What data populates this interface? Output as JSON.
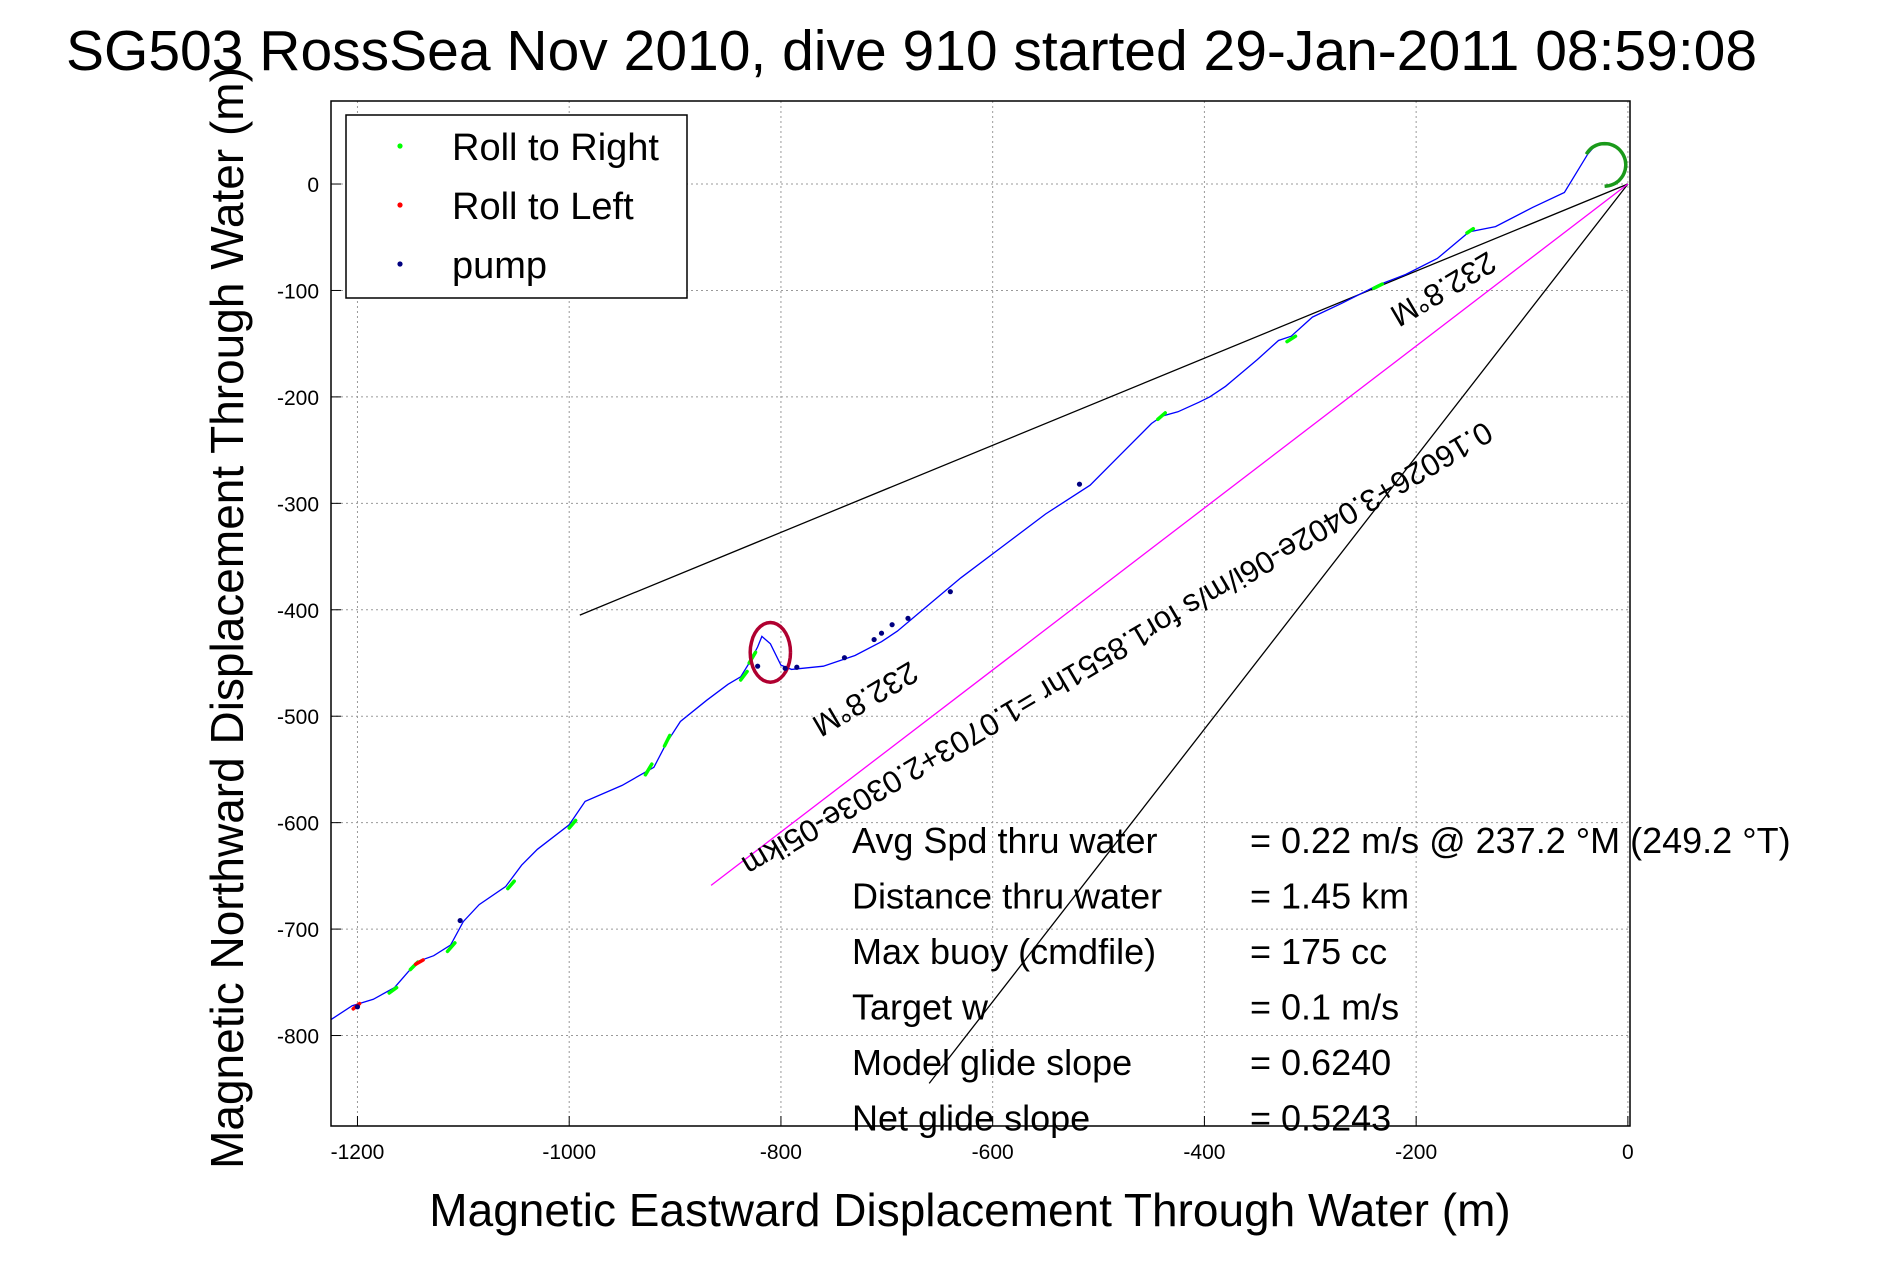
{
  "chart_data": {
    "type": "line",
    "title": "SG503 RossSea Nov 2010, dive 910 started 29-Jan-2011 08:59:08",
    "xlabel": "Magnetic Eastward Displacement Through Water (m)",
    "ylabel": "Magnetic Northward Displacement Through Water (m)",
    "xlim": [
      -1225,
      2
    ],
    "ylim": [
      -885,
      78
    ],
    "xticks": [
      -1200,
      -1000,
      -800,
      -600,
      -400,
      -200,
      0
    ],
    "yticks": [
      0,
      -100,
      -200,
      -300,
      -400,
      -500,
      -600,
      -700,
      -800
    ],
    "grid": true,
    "legend_position": "top-left",
    "legend": [
      {
        "label": "Roll to Right",
        "color": "#00ff00"
      },
      {
        "label": "Roll to Left",
        "color": "#ff0000"
      },
      {
        "label": "pump",
        "color": "#000080"
      }
    ],
    "track": {
      "color": "#0000ff",
      "x": [
        -1225,
        -1205,
        -1185,
        -1165,
        -1152,
        -1142,
        -1128,
        -1112,
        -1100,
        -1085,
        -1060,
        -1045,
        -1030,
        -1000,
        -985,
        -950,
        -920,
        -908,
        -895,
        -870,
        -850,
        -838,
        -830,
        -822,
        -818,
        -810,
        -800,
        -790,
        -760,
        -730,
        -705,
        -690,
        -672,
        -630,
        -590,
        -550,
        -508,
        -480,
        -450,
        -440,
        -425,
        -405,
        -395,
        -380,
        -350,
        -330,
        -318,
        -298,
        -270,
        -236,
        -210,
        -180,
        -150,
        -125,
        -90,
        -60,
        -38,
        -32
      ],
      "y": [
        -785,
        -772,
        -766,
        -755,
        -740,
        -730,
        -725,
        -715,
        -693,
        -677,
        -660,
        -640,
        -625,
        -602,
        -580,
        -565,
        -548,
        -525,
        -505,
        -485,
        -470,
        -463,
        -450,
        -435,
        -425,
        -432,
        -452,
        -456,
        -453,
        -443,
        -430,
        -420,
        -405,
        -370,
        -340,
        -310,
        -283,
        -255,
        -225,
        -218,
        -214,
        -205,
        -200,
        -190,
        -165,
        -147,
        -143,
        -125,
        -112,
        -95,
        -85,
        -70,
        -45,
        -40,
        -22,
        -8,
        28,
        35
      ]
    },
    "roll_right_arc": {
      "cx": -22,
      "cy": 18,
      "r": 20,
      "start_deg": 150,
      "end_deg": -90
    },
    "roll_right_segments": [
      {
        "x": [
          -1170,
          -1163
        ],
        "y": [
          -760,
          -755
        ]
      },
      {
        "x": [
          -1150,
          -1143
        ],
        "y": [
          -738,
          -731
        ]
      },
      {
        "x": [
          -1115,
          -1108
        ],
        "y": [
          -721,
          -713
        ]
      },
      {
        "x": [
          -1058,
          -1052
        ],
        "y": [
          -662,
          -655
        ]
      },
      {
        "x": [
          -1000,
          -994
        ],
        "y": [
          -605,
          -598
        ]
      },
      {
        "x": [
          -928,
          -922
        ],
        "y": [
          -555,
          -545
        ]
      },
      {
        "x": [
          -910,
          -905
        ],
        "y": [
          -528,
          -518
        ]
      },
      {
        "x": [
          -838,
          -832
        ],
        "y": [
          -466,
          -458
        ]
      },
      {
        "x": [
          -830,
          -824
        ],
        "y": [
          -450,
          -440
        ]
      },
      {
        "x": [
          -444,
          -437
        ],
        "y": [
          -221,
          -215
        ]
      },
      {
        "x": [
          -322,
          -314
        ],
        "y": [
          -148,
          -143
        ]
      },
      {
        "x": [
          -240,
          -232
        ],
        "y": [
          -98,
          -94
        ]
      },
      {
        "x": [
          -152,
          -146
        ],
        "y": [
          -46,
          -42
        ]
      }
    ],
    "roll_left_segments": [
      {
        "x": [
          -1204,
          -1198
        ],
        "y": [
          -775,
          -770
        ]
      },
      {
        "x": [
          -1145,
          -1138
        ],
        "y": [
          -733,
          -729
        ]
      }
    ],
    "roll_left_loop": {
      "cx": -810,
      "cy": -440,
      "rx": 19,
      "ry": 28
    },
    "pump_points": {
      "color": "#000080",
      "x": [
        -1200,
        -1103,
        -822,
        -796,
        -785,
        -740,
        -712,
        -705,
        -695,
        -680,
        -640,
        -518
      ],
      "y": [
        -773,
        -692,
        -453,
        -455,
        -454,
        -445,
        -428,
        -422,
        -414,
        -408,
        -383,
        -282
      ]
    },
    "waypoint_lines": [
      {
        "x": [
          0,
          -990
        ],
        "y": [
          0,
          -405
        ]
      },
      {
        "x": [
          0,
          -660
        ],
        "y": [
          0,
          -845
        ]
      }
    ],
    "course_line": {
      "x": [
        0,
        -866
      ],
      "y": [
        0,
        -659
      ],
      "color": "#ff00ff"
    },
    "rotated_labels": [
      {
        "text": "0.16026+3.0402e-06i/m/s for1.8551hr =1.0703+2.0303e-05ikm"
      },
      {
        "text": "232.8°M"
      },
      {
        "text": "232.8°M"
      }
    ],
    "stats": [
      {
        "label": "Avg Spd thru water",
        "value": "=  0.22 m/s @ 237.2 °M (249.2 °T)"
      },
      {
        "label": "Distance thru water",
        "value": "=  1.45 km"
      },
      {
        "label": "Max buoy (cmdfile)",
        "value": "= 175 cc"
      },
      {
        "label": "Target w",
        "value": "= 0.1 m/s"
      },
      {
        "label": "Model glide slope",
        "value": "= 0.6240"
      },
      {
        "label": "Net glide slope",
        "value": "= 0.5243"
      }
    ]
  }
}
